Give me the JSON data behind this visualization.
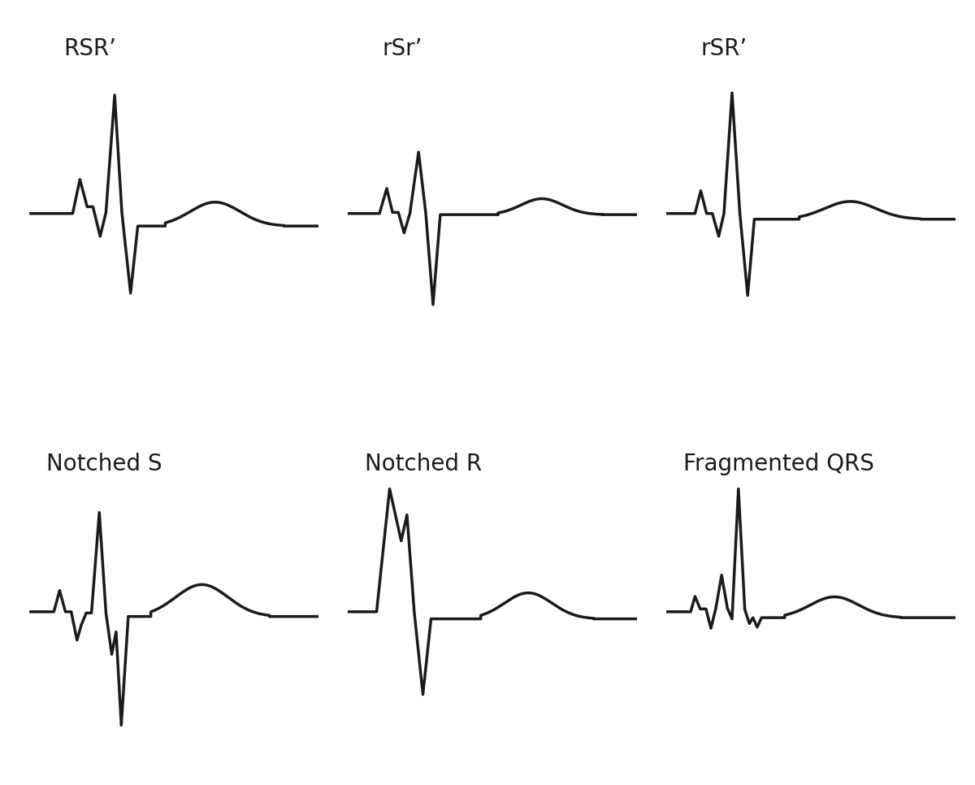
{
  "labels": [
    "RSR’",
    "rSr’",
    "rSR’",
    "Notched S",
    "Notched R",
    "Fragmented QRS"
  ],
  "label_fontsize": 20,
  "line_color": "#1a1a1a",
  "line_width": 2.5,
  "bg_color": "#ffffff",
  "fig_width": 12.0,
  "fig_height": 9.66,
  "dpi": 100
}
